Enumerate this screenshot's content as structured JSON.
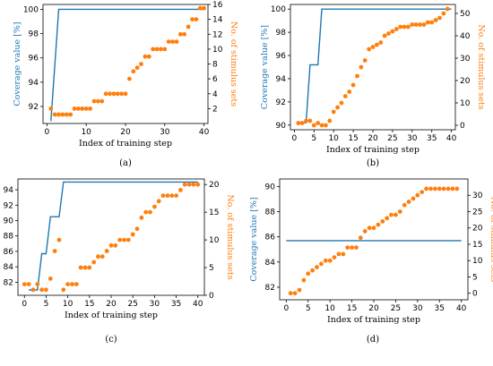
{
  "colors": {
    "coverage": "#1f77b4",
    "stimulus": "#ff7f0e",
    "axis": "#000000"
  },
  "chart_data": [
    {
      "id": "a",
      "type": "line+scatter",
      "caption": "(a)",
      "xlabel": "Index of training step",
      "ylabel_left": "Coverage value [%]",
      "ylabel_right": "No. of stimulus sets",
      "xlim": [
        -1,
        41
      ],
      "ylim_left": [
        90.6,
        100.4
      ],
      "ylim_right": [
        0,
        16
      ],
      "xticks": [
        0,
        10,
        20,
        30,
        40
      ],
      "yticks_left": [
        92,
        94,
        96,
        98,
        100
      ],
      "yticks_right": [
        2,
        4,
        6,
        8,
        10,
        12,
        14,
        16
      ],
      "series": [
        {
          "axis": "left",
          "kind": "line",
          "points": [
            [
              1,
              90.8
            ],
            [
              3,
              100
            ],
            [
              40,
              100
            ]
          ]
        },
        {
          "axis": "right",
          "kind": "scatter",
          "points": [
            [
              1,
              2
            ],
            [
              2,
              1.2
            ],
            [
              3,
              1.2
            ],
            [
              4,
              1.2
            ],
            [
              5,
              1.2
            ],
            [
              6,
              1.2
            ],
            [
              7,
              2
            ],
            [
              8,
              2
            ],
            [
              9,
              2
            ],
            [
              10,
              2
            ],
            [
              11,
              2
            ],
            [
              12,
              3
            ],
            [
              13,
              3
            ],
            [
              14,
              3
            ],
            [
              15,
              4
            ],
            [
              16,
              4
            ],
            [
              17,
              4
            ],
            [
              18,
              4
            ],
            [
              19,
              4
            ],
            [
              20,
              4
            ],
            [
              21,
              6
            ],
            [
              22,
              7
            ],
            [
              23,
              7.5
            ],
            [
              24,
              8
            ],
            [
              25,
              9
            ],
            [
              26,
              9
            ],
            [
              27,
              10
            ],
            [
              28,
              10
            ],
            [
              29,
              10
            ],
            [
              30,
              10
            ],
            [
              31,
              11
            ],
            [
              32,
              11
            ],
            [
              33,
              11
            ],
            [
              34,
              12
            ],
            [
              35,
              12
            ],
            [
              36,
              13
            ],
            [
              37,
              14
            ],
            [
              38,
              14
            ],
            [
              39,
              15.5
            ],
            [
              40,
              15.5
            ]
          ]
        }
      ]
    },
    {
      "id": "b",
      "type": "line+scatter",
      "caption": "(b)",
      "xlabel": "Index of training step",
      "ylabel_left": "Coverage value [%]",
      "ylabel_right": "No. of stimulus sets",
      "xlim": [
        -1,
        41
      ],
      "ylim_left": [
        89.6,
        100.4
      ],
      "ylim_right": [
        -2,
        54
      ],
      "xticks": [
        0,
        5,
        10,
        15,
        20,
        25,
        30,
        35,
        40
      ],
      "yticks_left": [
        90,
        92,
        94,
        96,
        98,
        100
      ],
      "yticks_right": [
        0,
        10,
        20,
        30,
        40,
        50
      ],
      "series": [
        {
          "axis": "left",
          "kind": "line",
          "points": [
            [
              1,
              90.2
            ],
            [
              3,
              90.2
            ],
            [
              4,
              95.2
            ],
            [
              6,
              95.2
            ],
            [
              7,
              100
            ],
            [
              40,
              100
            ]
          ]
        },
        {
          "axis": "right",
          "kind": "scatter",
          "points": [
            [
              1,
              1
            ],
            [
              2,
              1
            ],
            [
              3,
              2
            ],
            [
              4,
              2
            ],
            [
              5,
              0
            ],
            [
              6,
              1
            ],
            [
              7,
              0
            ],
            [
              8,
              0
            ],
            [
              9,
              2
            ],
            [
              10,
              6
            ],
            [
              11,
              8
            ],
            [
              12,
              10
            ],
            [
              13,
              13
            ],
            [
              14,
              15
            ],
            [
              15,
              18
            ],
            [
              16,
              22
            ],
            [
              17,
              26
            ],
            [
              18,
              29
            ],
            [
              19,
              34
            ],
            [
              20,
              35
            ],
            [
              21,
              36
            ],
            [
              22,
              37
            ],
            [
              23,
              40
            ],
            [
              24,
              41
            ],
            [
              25,
              42
            ],
            [
              26,
              43
            ],
            [
              27,
              44
            ],
            [
              28,
              44
            ],
            [
              29,
              44
            ],
            [
              30,
              45
            ],
            [
              31,
              45
            ],
            [
              32,
              45
            ],
            [
              33,
              45
            ],
            [
              34,
              46
            ],
            [
              35,
              46
            ],
            [
              36,
              47
            ],
            [
              37,
              48
            ],
            [
              38,
              50
            ],
            [
              39,
              52
            ]
          ]
        }
      ]
    },
    {
      "id": "c",
      "type": "line+scatter",
      "caption": "(c)",
      "xlabel": "Index of training step",
      "ylabel_left": "",
      "ylabel_right": "No. of stimulus sets",
      "xlim": [
        -1.5,
        41.5
      ],
      "ylim_left": [
        80.3,
        95.4
      ],
      "ylim_right": [
        0,
        21
      ],
      "xticks": [
        0,
        5,
        10,
        15,
        20,
        25,
        30,
        35,
        40
      ],
      "yticks_left": [
        82,
        84,
        86,
        88,
        90,
        92,
        94
      ],
      "yticks_right": [
        0,
        5,
        10,
        15,
        20
      ],
      "series": [
        {
          "axis": "left",
          "kind": "line",
          "points": [
            [
              1,
              81
            ],
            [
              3,
              81
            ],
            [
              4,
              85.7
            ],
            [
              5,
              85.7
            ],
            [
              6,
              90.5
            ],
            [
              8,
              90.5
            ],
            [
              9,
              95
            ],
            [
              40,
              95
            ]
          ]
        },
        {
          "axis": "right",
          "kind": "scatter",
          "points": [
            [
              0,
              2
            ],
            [
              1,
              2
            ],
            [
              2,
              1
            ],
            [
              3,
              2
            ],
            [
              4,
              1
            ],
            [
              5,
              1
            ],
            [
              6,
              3
            ],
            [
              7,
              8
            ],
            [
              8,
              10
            ],
            [
              9,
              1
            ],
            [
              10,
              2
            ],
            [
              11,
              2
            ],
            [
              12,
              2
            ],
            [
              13,
              5
            ],
            [
              14,
              5
            ],
            [
              15,
              5
            ],
            [
              16,
              6
            ],
            [
              17,
              7
            ],
            [
              18,
              7
            ],
            [
              19,
              8
            ],
            [
              20,
              9
            ],
            [
              21,
              9
            ],
            [
              22,
              10
            ],
            [
              23,
              10
            ],
            [
              24,
              10
            ],
            [
              25,
              11
            ],
            [
              26,
              12
            ],
            [
              27,
              14
            ],
            [
              28,
              15
            ],
            [
              29,
              15
            ],
            [
              30,
              16
            ],
            [
              31,
              17
            ],
            [
              32,
              18
            ],
            [
              33,
              18
            ],
            [
              34,
              18
            ],
            [
              35,
              18
            ],
            [
              36,
              19
            ],
            [
              37,
              20
            ],
            [
              38,
              20
            ],
            [
              39,
              20
            ],
            [
              40,
              20
            ]
          ]
        }
      ]
    },
    {
      "id": "d",
      "type": "line+scatter",
      "caption": "(d)",
      "xlabel": "Index of training step",
      "ylabel_left": "Coverage value [%]",
      "ylabel_right": "No. of stimulus sets",
      "xlim": [
        -1.5,
        41.5
      ],
      "ylim_left": [
        81,
        90.6
      ],
      "ylim_right": [
        -2,
        35
      ],
      "xticks": [
        0,
        5,
        10,
        15,
        20,
        25,
        30,
        35,
        40
      ],
      "yticks_left": [
        82,
        84,
        86,
        88,
        90
      ],
      "yticks_right": [
        0,
        5,
        10,
        15,
        20,
        25,
        30
      ],
      "series": [
        {
          "axis": "left",
          "kind": "line",
          "points": [
            [
              0,
              85.7
            ],
            [
              40,
              85.7
            ]
          ]
        },
        {
          "axis": "right",
          "kind": "scatter",
          "points": [
            [
              1,
              0
            ],
            [
              2,
              0
            ],
            [
              3,
              1
            ],
            [
              4,
              4
            ],
            [
              5,
              6
            ],
            [
              6,
              7
            ],
            [
              7,
              8
            ],
            [
              8,
              9
            ],
            [
              9,
              10
            ],
            [
              10,
              10
            ],
            [
              11,
              11
            ],
            [
              12,
              12
            ],
            [
              13,
              12
            ],
            [
              14,
              14
            ],
            [
              15,
              14
            ],
            [
              16,
              14
            ],
            [
              17,
              17
            ],
            [
              18,
              19
            ],
            [
              19,
              20
            ],
            [
              20,
              20
            ],
            [
              21,
              21
            ],
            [
              22,
              22
            ],
            [
              23,
              23
            ],
            [
              24,
              24
            ],
            [
              25,
              24
            ],
            [
              26,
              25
            ],
            [
              27,
              27
            ],
            [
              28,
              28
            ],
            [
              29,
              29
            ],
            [
              30,
              30
            ],
            [
              31,
              31
            ],
            [
              32,
              32
            ],
            [
              33,
              32
            ],
            [
              34,
              32
            ],
            [
              35,
              32
            ],
            [
              36,
              32
            ],
            [
              37,
              32
            ],
            [
              38,
              32
            ],
            [
              39,
              32
            ]
          ]
        }
      ]
    }
  ]
}
